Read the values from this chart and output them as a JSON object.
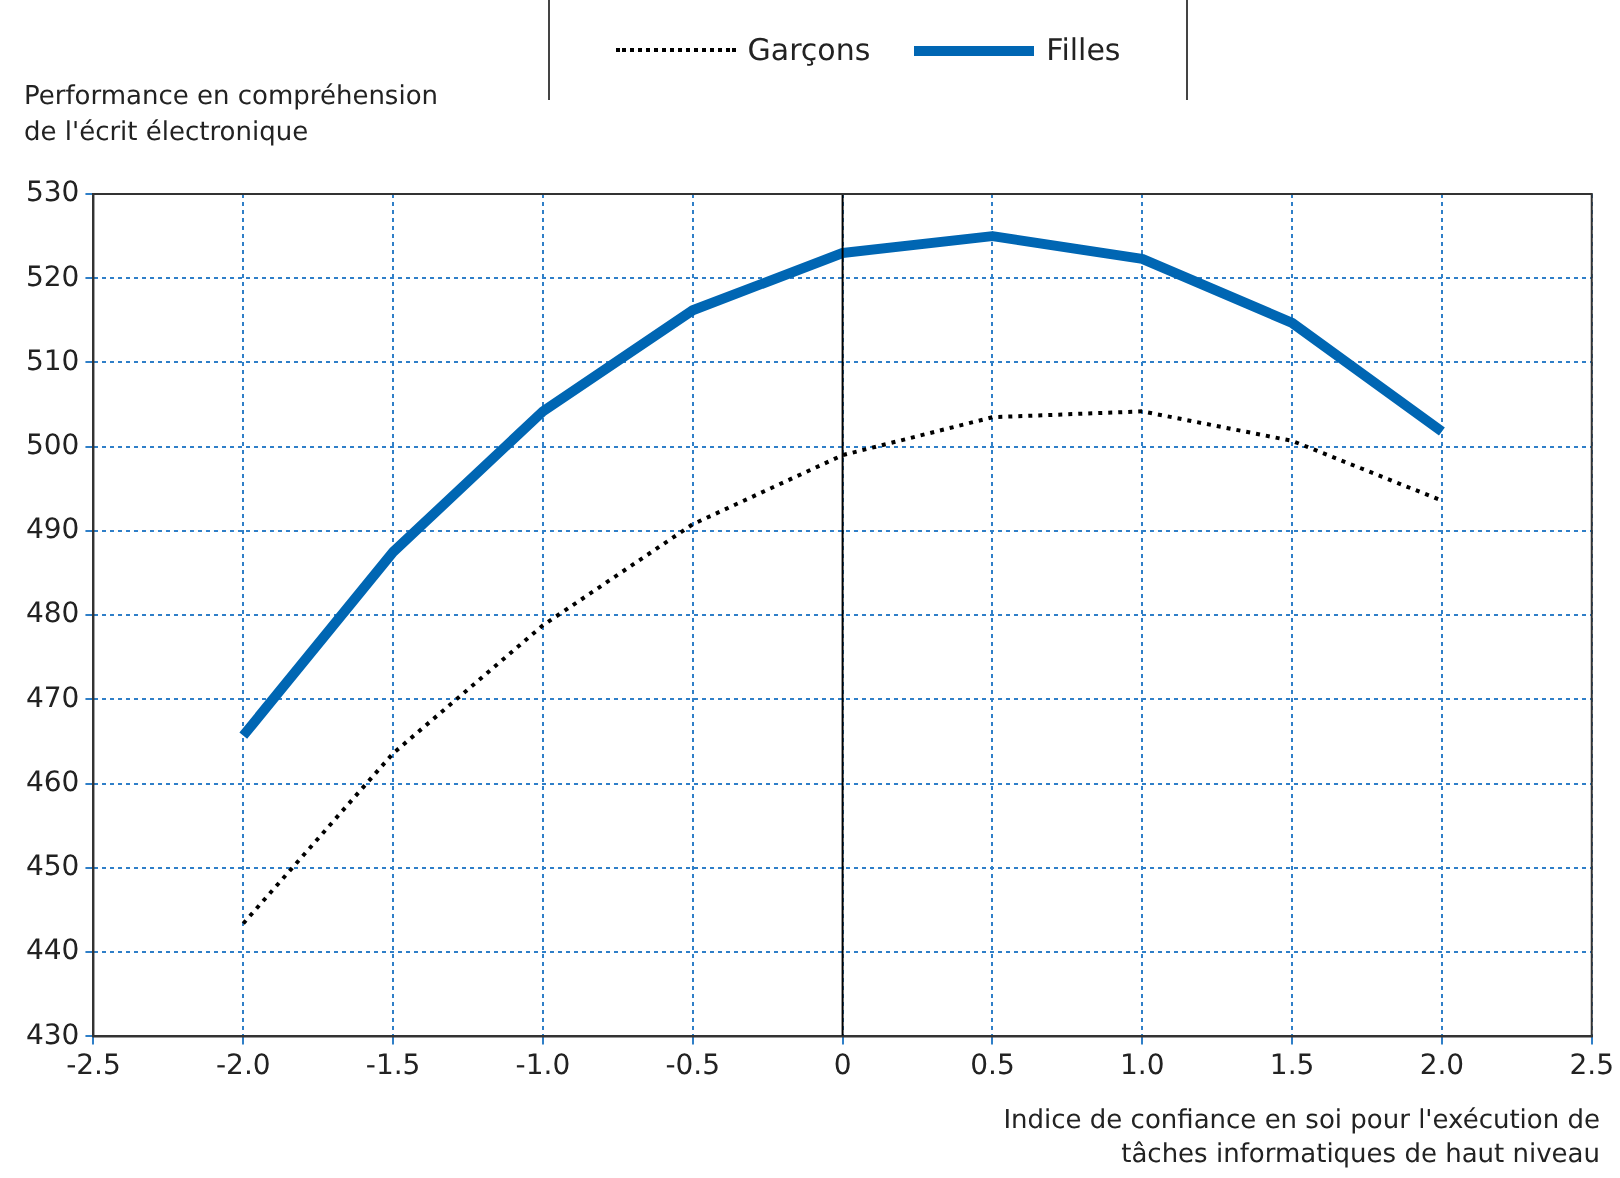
{
  "chart_data": {
    "type": "line",
    "xlabel": "Indice de confiance en soi pour l'exécution de tâches informatiques de haut niveau",
    "ylabel": "Performance en compréhension de l'écrit électronique",
    "x": [
      -2.0,
      -1.5,
      -1.0,
      -0.5,
      0,
      0.5,
      1.0,
      1.5,
      2.0
    ],
    "series": [
      {
        "name": "Garçons",
        "color": "#000000",
        "line_style": "dotted",
        "values": [
          443.4,
          463.6,
          478.8,
          490.8,
          499,
          503.5,
          504.2,
          500.7,
          493.6
        ]
      },
      {
        "name": "Filles",
        "color": "#0066b3",
        "line_style": "solid",
        "values": [
          465.7,
          487.5,
          504.2,
          516.2,
          523,
          525,
          522.3,
          514.7,
          501.8
        ]
      }
    ],
    "xlim": [
      -2.5,
      2.5
    ],
    "xticks": [
      -2.5,
      {
        "value": -2.0,
        "label": "-2.0"
      },
      -1.5,
      {
        "value": -1.0,
        "label": "-1.0"
      },
      -0.5,
      0,
      0.5,
      {
        "value": 1.0,
        "label": "1.0"
      },
      1.5,
      {
        "value": 2.0,
        "label": "2.0"
      },
      2.5
    ],
    "ylim": [
      430,
      530
    ],
    "yticks": [
      430,
      440,
      450,
      460,
      470,
      480,
      490,
      500,
      510,
      520,
      530
    ],
    "ref_lines": [
      {
        "axis": "x",
        "value": 0,
        "color": "#000000"
      }
    ],
    "grid": true,
    "legend": "top",
    "marker": "none"
  }
}
